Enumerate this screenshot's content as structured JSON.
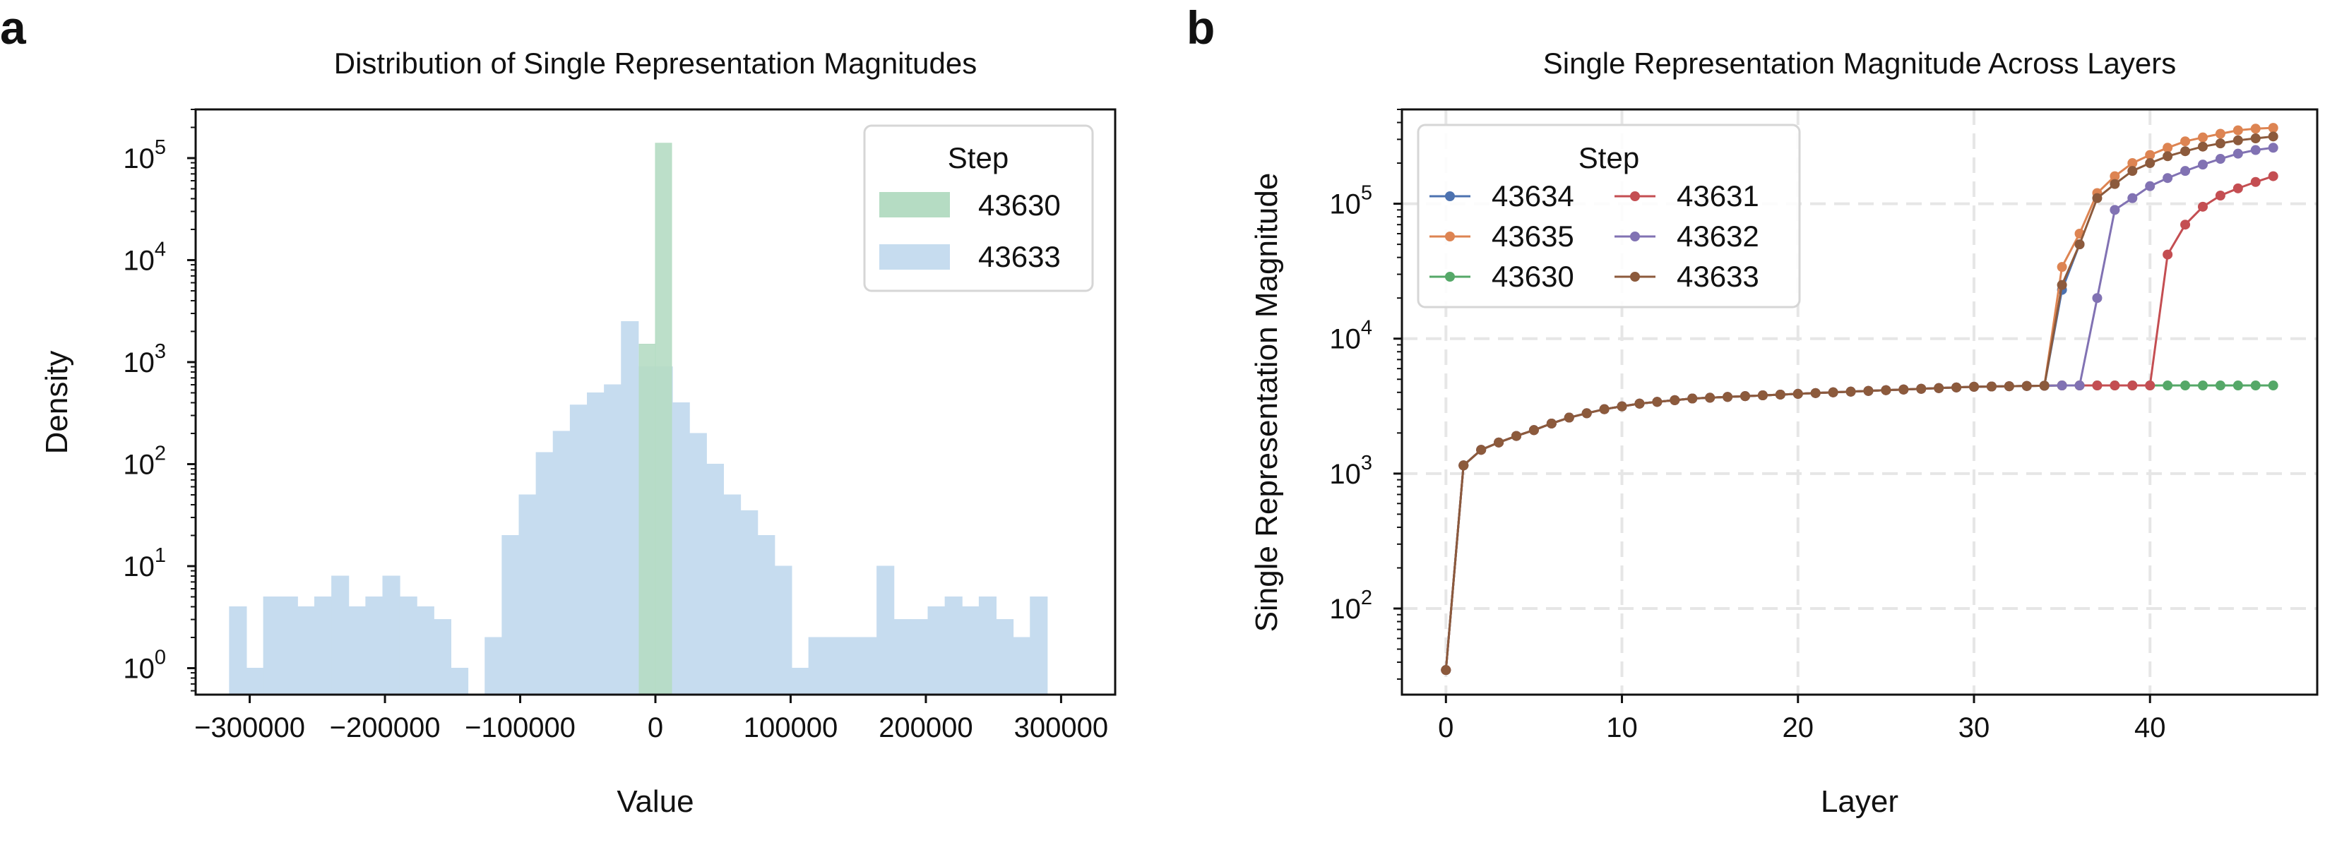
{
  "panel_labels": [
    "a",
    "b"
  ],
  "chart_data": [
    {
      "type": "bar",
      "title": "Distribution of Single Representation Magnitudes",
      "xlabel": "Value",
      "ylabel": "Density",
      "yscale": "log",
      "xlim": [
        -340000,
        340000
      ],
      "ylim": [
        0.55,
        300000
      ],
      "xticks": [
        -300000,
        -200000,
        -100000,
        0,
        100000,
        200000,
        300000
      ],
      "xtick_labels": [
        "−300000",
        "−200000",
        "−100000",
        "0",
        "100000",
        "200000",
        "300000"
      ],
      "yticks": [
        1,
        10,
        100,
        1000,
        10000,
        100000
      ],
      "ytick_bases": [
        "10",
        "10",
        "10",
        "10",
        "10",
        "10"
      ],
      "ytick_exps": [
        "0",
        "1",
        "2",
        "3",
        "4",
        "5"
      ],
      "legend": {
        "title": "Step",
        "position": "upper right"
      },
      "series": [
        {
          "name": "43633",
          "color": "#c6dcef",
          "bin_start": -315000,
          "bin_width": 12600,
          "values": [
            4,
            1,
            5,
            5,
            4,
            5,
            8,
            4,
            5,
            8,
            5,
            4,
            3,
            1,
            0,
            2,
            20,
            50,
            130,
            210,
            380,
            500,
            600,
            2500,
            900,
            900,
            400,
            200,
            100,
            50,
            35,
            20,
            10,
            1,
            2,
            2,
            2,
            2,
            10,
            3,
            3,
            4,
            5,
            4,
            5,
            3,
            2,
            5
          ]
        },
        {
          "name": "43630",
          "color": "#b5dcc3",
          "bin_start": -12000,
          "bin_width": 12000,
          "values": [
            1500,
            140000
          ]
        }
      ]
    },
    {
      "type": "line",
      "title": "Single Representation Magnitude Across Layers",
      "xlabel": "Layer",
      "ylabel": "Single Representation Magnitude",
      "yscale": "log",
      "xlim": [
        -2.5,
        49.5
      ],
      "ylim": [
        23,
        500000
      ],
      "xticks": [
        0,
        10,
        20,
        30,
        40
      ],
      "xtick_labels": [
        "0",
        "10",
        "20",
        "30",
        "40"
      ],
      "yticks": [
        100,
        1000,
        10000,
        100000
      ],
      "ytick_bases": [
        "10",
        "10",
        "10",
        "10"
      ],
      "ytick_exps": [
        "2",
        "3",
        "4",
        "5"
      ],
      "grid": true,
      "legend": {
        "title": "Step",
        "position": "upper left",
        "ncol": 2
      },
      "base_values": [
        35,
        1150,
        1500,
        1700,
        1900,
        2100,
        2350,
        2600,
        2800,
        3000,
        3150,
        3300,
        3400,
        3500,
        3600,
        3650,
        3700,
        3750,
        3800,
        3850,
        3900,
        3950,
        4000,
        4050,
        4100,
        4150,
        4200,
        4250,
        4300,
        4350,
        4400,
        4420,
        4440,
        4460,
        4480,
        4500,
        4500,
        4500,
        4500,
        4500,
        4500,
        4500,
        4500,
        4500,
        4500,
        4500,
        4500,
        4500
      ],
      "series": [
        {
          "name": "43634",
          "color": "#4c72b0",
          "diverge_at": 35,
          "tail": [
            23000,
            50000
          ]
        },
        {
          "name": "43635",
          "color": "#dd8452",
          "diverge_at": 35,
          "tail": [
            34000,
            60000,
            120000,
            160000,
            200000,
            230000,
            260000,
            290000,
            310000,
            330000,
            350000,
            360000,
            365000
          ]
        },
        {
          "name": "43630",
          "color": "#55a868",
          "diverge_at": 48,
          "tail": []
        },
        {
          "name": "43631",
          "color": "#c44e52",
          "diverge_at": 41,
          "tail": [
            42000,
            70000,
            95000,
            115000,
            130000,
            145000,
            160000
          ]
        },
        {
          "name": "43632",
          "color": "#8172b3",
          "diverge_at": 37,
          "tail": [
            20000,
            90000,
            110000,
            135000,
            155000,
            175000,
            195000,
            215000,
            235000,
            250000,
            260000
          ]
        },
        {
          "name": "43633",
          "color": "#8c5a3c",
          "diverge_at": 35,
          "tail": [
            25000,
            50000,
            110000,
            140000,
            175000,
            200000,
            225000,
            245000,
            265000,
            280000,
            295000,
            305000,
            315000
          ]
        }
      ]
    }
  ]
}
